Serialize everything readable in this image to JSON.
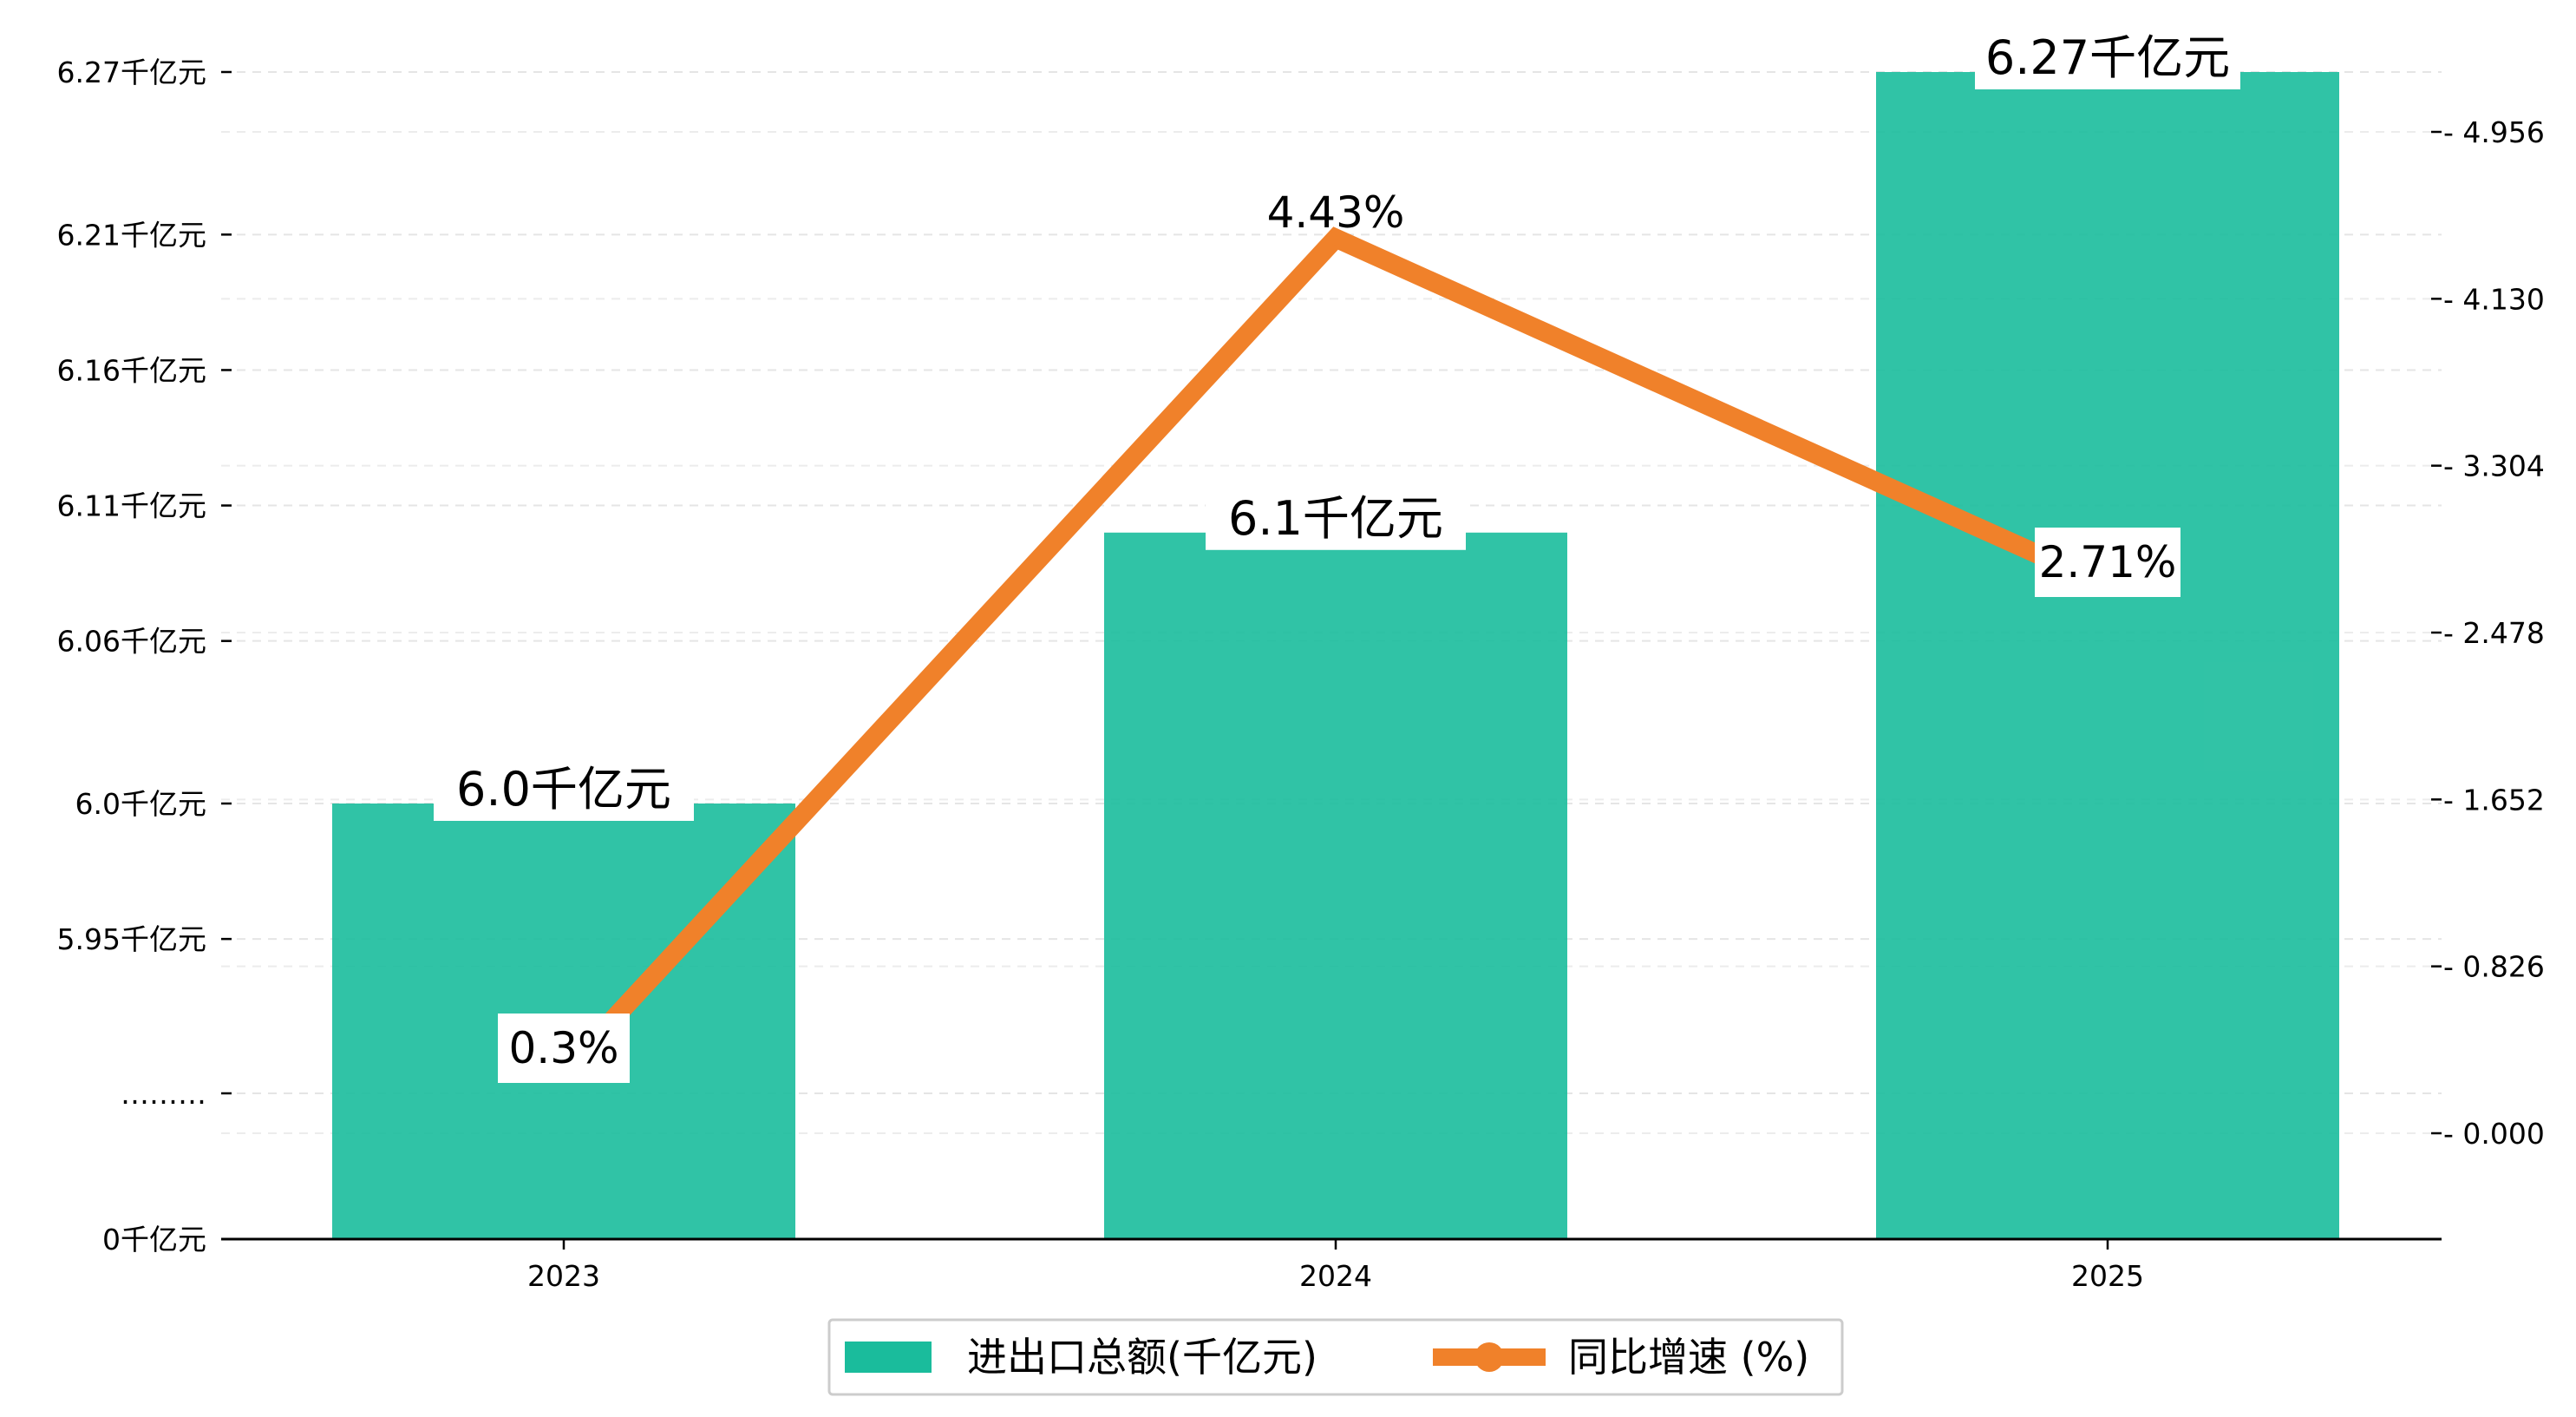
{
  "chart_data": {
    "type": "bar",
    "categories": [
      "2023",
      "2024",
      "2025"
    ],
    "series": [
      {
        "name": "进出口总额(千亿元)",
        "type": "bar",
        "axis": "left",
        "values": [
          6.0,
          6.1,
          6.27
        ],
        "labels": [
          "6.0千亿元",
          "6.1千亿元",
          "6.27千亿元"
        ],
        "color": "#1ABC9C"
      },
      {
        "name": "同比增速 (%)",
        "type": "line",
        "axis": "right",
        "values": [
          0.3,
          4.43,
          2.71
        ],
        "labels": [
          "0.3%",
          "4.43%",
          "2.71%"
        ],
        "color": "#F0812A"
      }
    ],
    "left_axis": {
      "ticks": [
        {
          "value": 0,
          "label": "0千亿元"
        },
        {
          "value": null,
          "label": "………"
        },
        {
          "value": 5.95,
          "label": "5.95千亿元"
        },
        {
          "value": 6.0,
          "label": "6.0千亿元"
        },
        {
          "value": 6.06,
          "label": "6.06千亿元"
        },
        {
          "value": 6.11,
          "label": "6.11千亿元"
        },
        {
          "value": 6.16,
          "label": "6.16千亿元"
        },
        {
          "value": 6.21,
          "label": "6.21千亿元"
        },
        {
          "value": 6.27,
          "label": "6.27千亿元"
        }
      ],
      "axis_break": true
    },
    "right_axis": {
      "ticks": [
        "0.000",
        "0.826",
        "1.652",
        "2.478",
        "3.304",
        "4.130",
        "4.956"
      ],
      "ylim": [
        -0.53,
        5.27
      ]
    },
    "grid": true,
    "legend_position": "bottom-center"
  }
}
